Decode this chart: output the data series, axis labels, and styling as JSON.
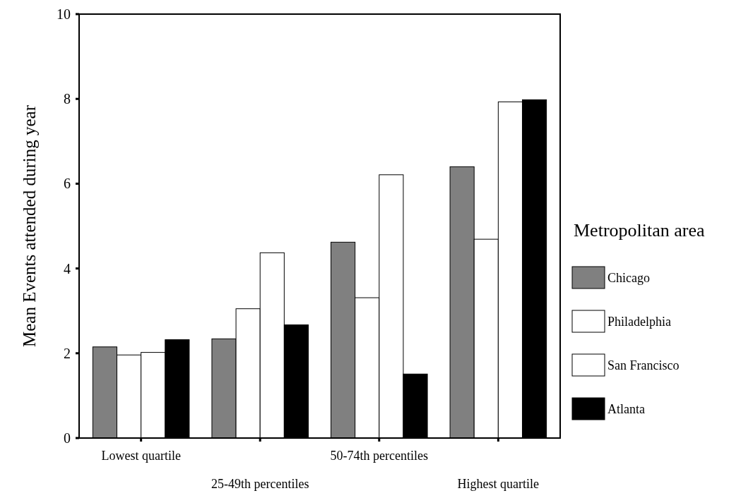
{
  "chart_data": {
    "type": "bar",
    "ylabel": "Mean Events attended during year",
    "legend_title": "Metropolitan area",
    "categories": [
      "Lowest quartile",
      "25-49th percentiles",
      "50-74th percentiles",
      "Highest quartile"
    ],
    "series": [
      {
        "name": "Chicago",
        "color": "#808080",
        "values": [
          2.15,
          2.34,
          4.62,
          6.4
        ]
      },
      {
        "name": "Philadelphia",
        "color": "#ffffff",
        "values": [
          1.96,
          3.05,
          3.31,
          4.69
        ]
      },
      {
        "name": "San Francisco",
        "color": "#ffffff",
        "values": [
          2.02,
          4.37,
          6.21,
          7.93
        ]
      },
      {
        "name": "Atlanta",
        "color": "#000000",
        "values": [
          2.32,
          2.67,
          1.51,
          7.98
        ]
      }
    ],
    "ylim": [
      0,
      10
    ],
    "yticks": [
      0,
      2,
      4,
      6,
      8,
      10
    ],
    "grid": false,
    "legend": "right"
  }
}
